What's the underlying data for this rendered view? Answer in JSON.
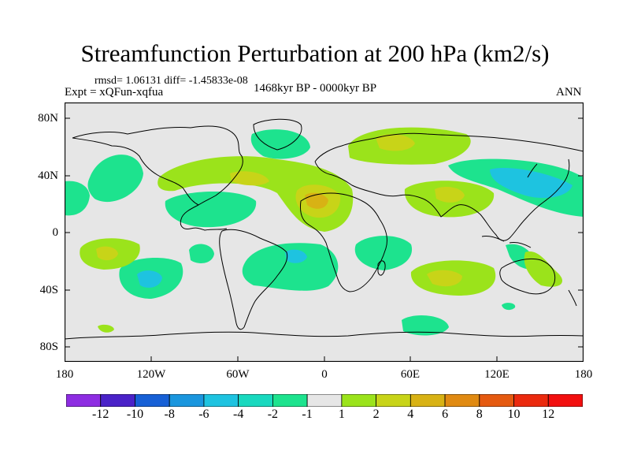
{
  "figure": {
    "title": "Streamfunction Perturbation at 200 hPa (km2/s)",
    "stats": "rmsd= 1.06131 diff= -1.45833e-08",
    "experiment": "Expt = xQFun-xqfua",
    "period": "1468kyr BP - 0000kyr BP",
    "season": "ANN"
  },
  "axes": {
    "lat_ticks": [
      "80N",
      "40N",
      "0",
      "40S",
      "80S"
    ],
    "lon_ticks": [
      "180",
      "120W",
      "60W",
      "0",
      "60E",
      "120E",
      "180"
    ]
  },
  "colorbar": {
    "labels": [
      "-12",
      "-10",
      "-8",
      "-6",
      "-4",
      "-2",
      "-1",
      "1",
      "2",
      "4",
      "6",
      "8",
      "10",
      "12"
    ],
    "colors": [
      "#8e2de2",
      "#4a22c8",
      "#1760d6",
      "#1a96de",
      "#1ec3e0",
      "#19d9bf",
      "#1de38e",
      "#e6e6e6",
      "#9be31b",
      "#c8d418",
      "#d8b214",
      "#e08a12",
      "#e55a10",
      "#eb2a0e",
      "#f20f0f"
    ]
  },
  "colors": {
    "land_fill": "#e6e6e6",
    "coast": "#000000"
  }
}
